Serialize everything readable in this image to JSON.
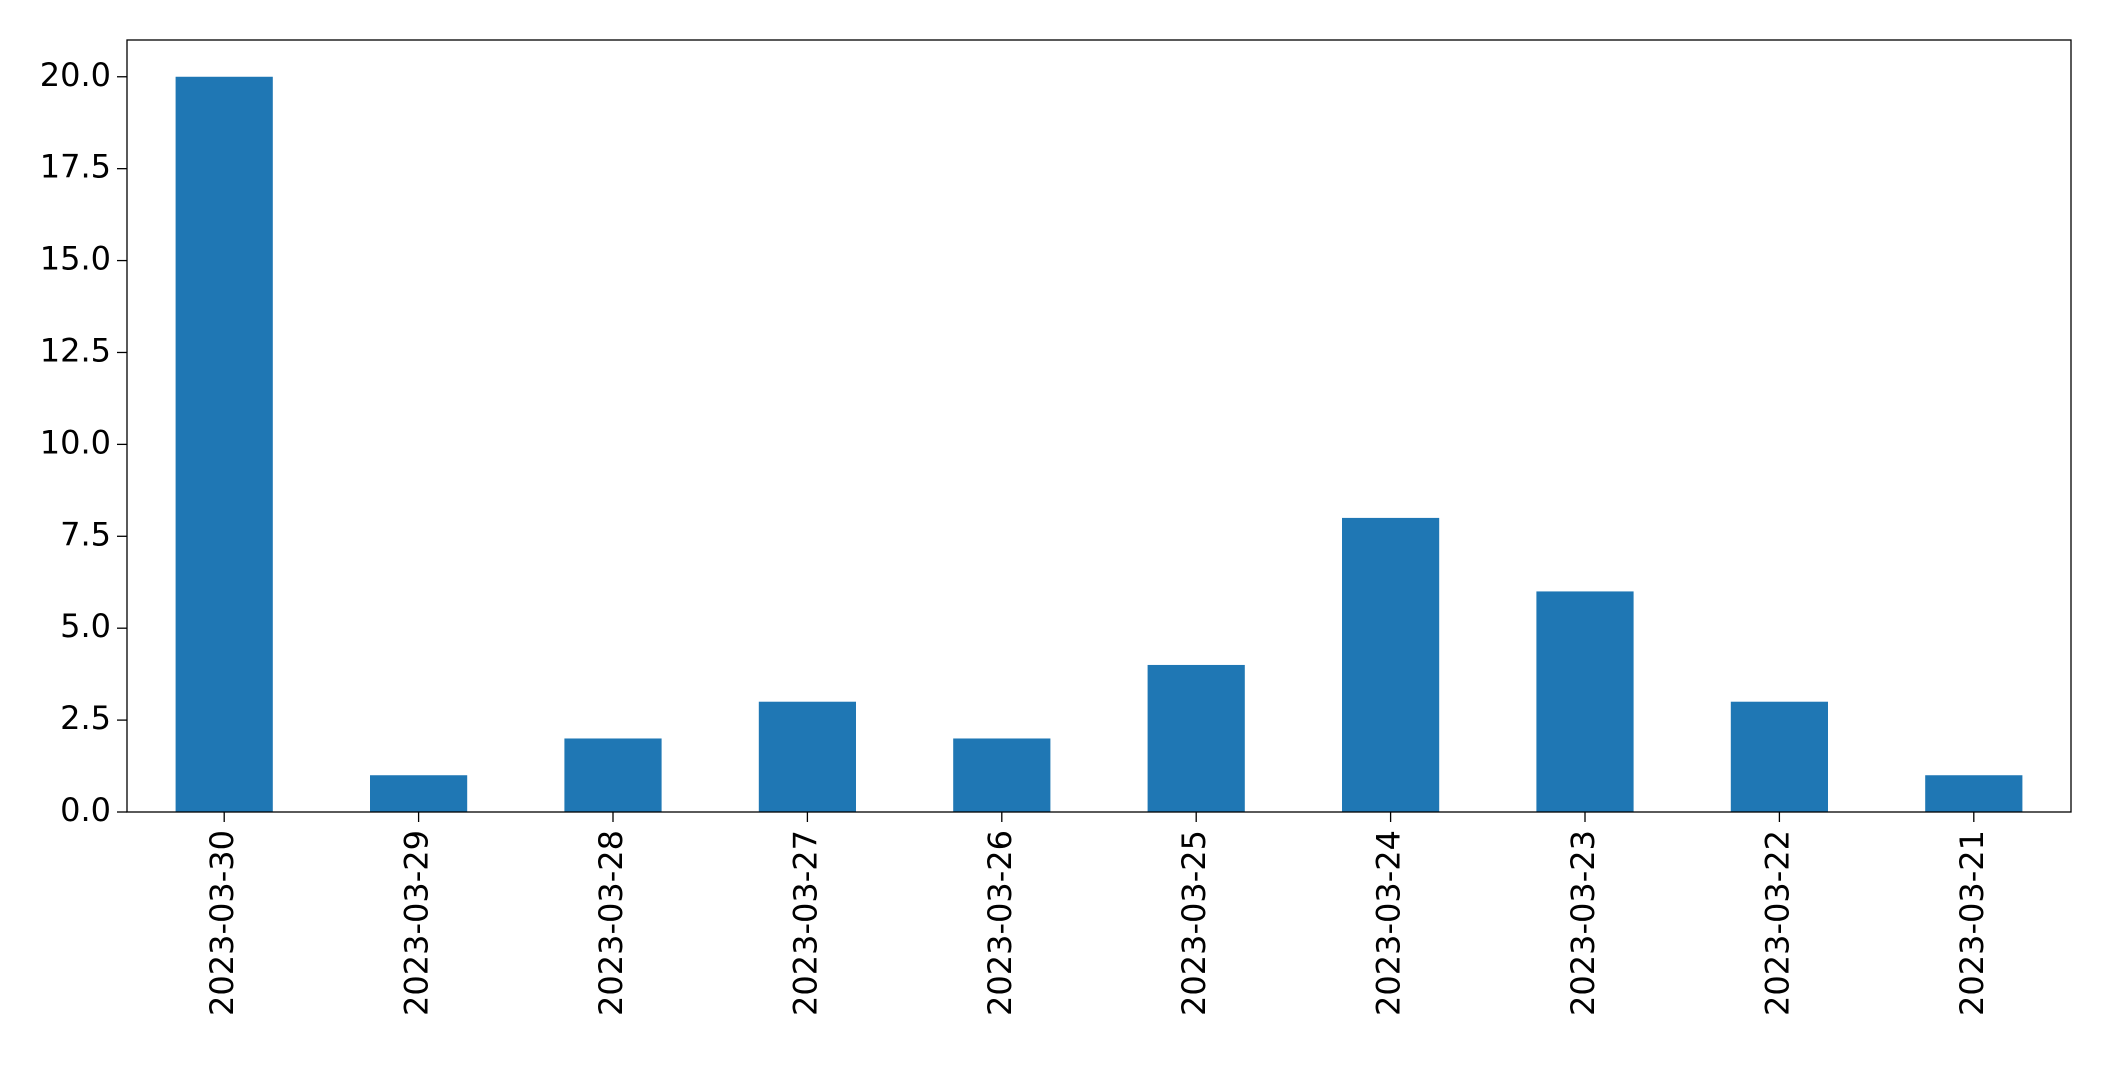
{
  "chart_data": {
    "type": "bar",
    "title": "",
    "xlabel": "",
    "ylabel": "",
    "categories": [
      "2023-03-30",
      "2023-03-29",
      "2023-03-28",
      "2023-03-27",
      "2023-03-26",
      "2023-03-25",
      "2023-03-24",
      "2023-03-23",
      "2023-03-22",
      "2023-03-21"
    ],
    "values": [
      20,
      1,
      2,
      3,
      2,
      4,
      8,
      6,
      3,
      1
    ],
    "ylim": [
      0,
      21
    ],
    "yticks": [
      0.0,
      2.5,
      5.0,
      7.5,
      10.0,
      12.5,
      15.0,
      17.5,
      20.0
    ],
    "ytick_labels": [
      "0.0",
      "2.5",
      "5.0",
      "7.5",
      "10.0",
      "12.5",
      "15.0",
      "17.5",
      "20.0"
    ],
    "grid": false,
    "legend": "none",
    "bar_color": "#1f77b4"
  }
}
